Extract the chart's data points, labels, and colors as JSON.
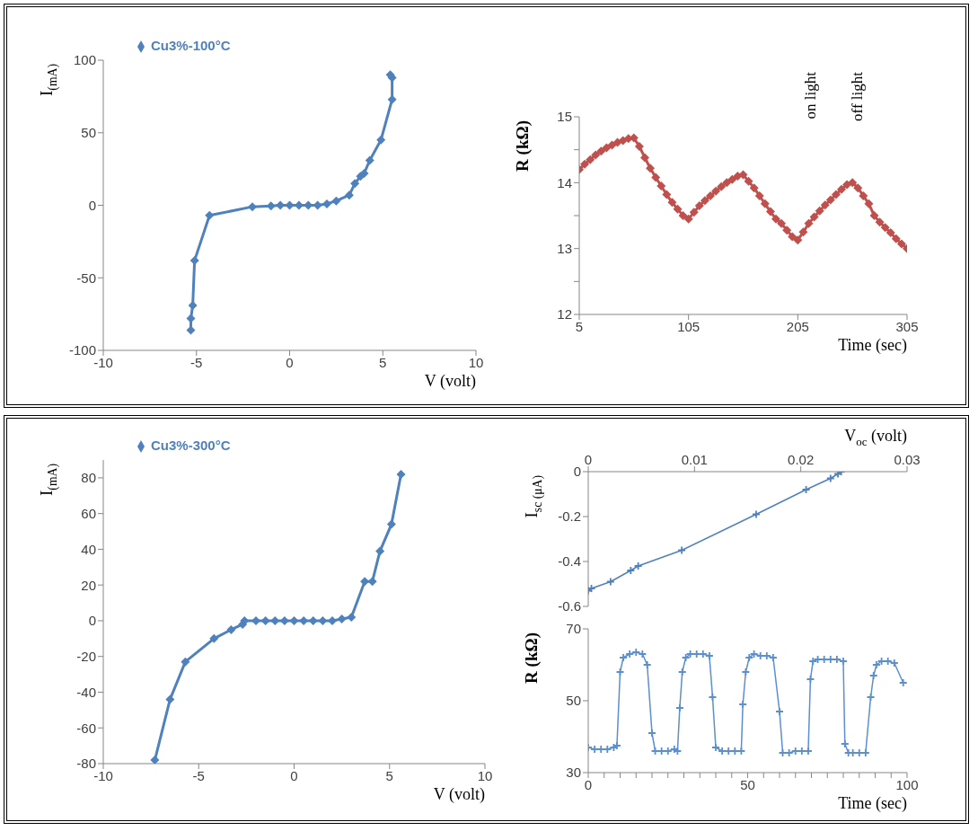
{
  "chart_data": [
    {
      "type": "line",
      "xlabel": "V (volt)",
      "ylabel": "I$_{(mA)}$",
      "legend": "top left",
      "marker": "diamond",
      "xlim": [
        -10,
        10
      ],
      "xticks": [
        -10,
        -5,
        0,
        5,
        10
      ],
      "ylim": [
        -100,
        100
      ],
      "yticks": [
        -100,
        -50,
        0,
        50,
        100
      ],
      "series": [
        {
          "name": "Cu3%-100°C",
          "color": "#4f81bd",
          "x": [
            -5.3,
            -5.3,
            -5.2,
            -5.1,
            -4.3,
            -2,
            -1,
            -0.5,
            0,
            0.5,
            1,
            1.5,
            2,
            2.5,
            3.2,
            3.5,
            3.8,
            4.0,
            4.3,
            4.9,
            5.5,
            5.5,
            5.4
          ],
          "values": [
            -86,
            -78,
            -69,
            -38,
            -7,
            -1,
            -0.5,
            0,
            0,
            0,
            0,
            0,
            1,
            3,
            7,
            15,
            20,
            22,
            31,
            45,
            73,
            88,
            90
          ]
        }
      ]
    },
    {
      "type": "line",
      "xlabel": "Time (sec)",
      "ylabel": "R (kΩ)",
      "marker": "diamond",
      "xlim": [
        5,
        305
      ],
      "xticks": [
        5,
        105,
        205,
        305
      ],
      "ylim": [
        12,
        15
      ],
      "yticks": [
        12,
        {
          "value": 12.5,
          "label": null
        },
        13,
        {
          "value": 13.5,
          "label": null
        },
        14,
        {
          "value": 14.5,
          "label": null
        },
        15
      ],
      "annotations": [
        "on light",
        "off light"
      ],
      "series": [
        {
          "color": "#c0504d",
          "x": [
            5,
            10,
            15,
            20,
            25,
            30,
            35,
            40,
            45,
            50,
            55,
            60,
            65,
            70,
            75,
            80,
            85,
            90,
            95,
            100,
            105,
            110,
            115,
            120,
            125,
            130,
            135,
            140,
            145,
            150,
            155,
            160,
            165,
            170,
            175,
            180,
            185,
            190,
            195,
            200,
            205,
            210,
            215,
            220,
            225,
            230,
            235,
            240,
            245,
            250,
            255,
            260,
            265,
            270,
            275,
            280,
            285,
            290,
            295,
            300,
            305
          ],
          "values": [
            14.2,
            14.28,
            14.35,
            14.42,
            14.48,
            14.53,
            14.57,
            14.61,
            14.64,
            14.67,
            14.68,
            14.55,
            14.38,
            14.22,
            14.08,
            13.95,
            13.82,
            13.7,
            13.6,
            13.5,
            13.45,
            13.55,
            13.65,
            13.73,
            13.8,
            13.87,
            13.94,
            14.0,
            14.05,
            14.1,
            14.12,
            14.02,
            13.92,
            13.8,
            13.68,
            13.56,
            13.45,
            13.38,
            13.28,
            13.18,
            13.13,
            13.25,
            13.38,
            13.48,
            13.57,
            13.66,
            13.74,
            13.82,
            13.9,
            13.97,
            14.0,
            13.92,
            13.8,
            13.68,
            13.5,
            13.4,
            13.32,
            13.24,
            13.15,
            13.07,
            13.0
          ]
        }
      ]
    },
    {
      "type": "line",
      "xlabel": "V (volt)",
      "ylabel": "I$_{(mA)}$",
      "legend": "top left",
      "marker": "diamond",
      "xlim": [
        -10,
        10
      ],
      "xticks": [
        -10,
        -5,
        0,
        5,
        10
      ],
      "ylim": [
        -80,
        90
      ],
      "yticks": [
        -80,
        -60,
        -40,
        -20,
        0,
        20,
        40,
        60,
        80
      ],
      "series": [
        {
          "name": "Cu3%-300°C",
          "color": "#4f81bd",
          "x": [
            -7.3,
            -6.5,
            -5.7,
            -4.2,
            -3.3,
            -2.7,
            -2.6,
            -2,
            -1.5,
            -1,
            -0.5,
            0,
            0.5,
            1,
            1.5,
            2,
            2.5,
            3,
            3.7,
            4.1,
            4.5,
            5.1,
            5.6
          ],
          "values": [
            -78,
            -44,
            -23,
            -10,
            -5,
            -2,
            0,
            0,
            0,
            0,
            0,
            0,
            0,
            0,
            0,
            0,
            1,
            2,
            22,
            22,
            39,
            54,
            82
          ]
        }
      ]
    },
    {
      "type": "line",
      "xlabel": "V$_{oc}$ (volt)",
      "ylabel": "I$_{sc (μA)}$",
      "marker": "cross",
      "xlim": [
        0,
        0.03
      ],
      "xticks": [
        0,
        0.01,
        0.02,
        0.03
      ],
      "ylim": [
        -0.6,
        0
      ],
      "yticks": [
        -0.6,
        -0.4,
        -0.2,
        0
      ],
      "series": [
        {
          "color": "#4f81bd",
          "x": [
            0,
            0.0003,
            0.0021,
            0.004,
            0.0047,
            0.0088,
            0.0158,
            0.0205,
            0.0228,
            0.0235,
            0.0238
          ],
          "values": [
            -0.53,
            -0.52,
            -0.49,
            -0.44,
            -0.42,
            -0.35,
            -0.19,
            -0.08,
            -0.03,
            -0.01,
            0
          ]
        }
      ]
    },
    {
      "type": "line",
      "xlabel": "Time (sec)",
      "ylabel": "R (kΩ)",
      "marker": "cross",
      "xlim": [
        0,
        100
      ],
      "xticks": [
        0,
        {
          "value": 5,
          "label": null
        },
        {
          "value": 10,
          "label": null
        },
        {
          "value": 15,
          "label": null
        },
        {
          "value": 20,
          "label": null
        },
        {
          "value": 25,
          "label": null
        },
        {
          "value": 30,
          "label": null
        },
        {
          "value": 35,
          "label": null
        },
        {
          "value": 40,
          "label": null
        },
        {
          "value": 45,
          "label": null
        },
        50,
        {
          "value": 55,
          "label": null
        },
        {
          "value": 60,
          "label": null
        },
        {
          "value": 65,
          "label": null
        },
        {
          "value": 70,
          "label": null
        },
        {
          "value": 75,
          "label": null
        },
        {
          "value": 80,
          "label": null
        },
        {
          "value": 85,
          "label": null
        },
        {
          "value": 90,
          "label": null
        },
        {
          "value": 95,
          "label": null
        },
        100
      ],
      "ylim": [
        30,
        70
      ],
      "yticks": [
        30,
        50,
        70
      ],
      "series": [
        {
          "color": "#5b8fd0",
          "x": [
            0,
            2,
            4,
            6,
            8,
            9,
            10,
            11,
            13,
            15,
            17,
            18.5,
            20,
            21,
            23,
            25,
            27,
            28,
            28.7,
            29.5,
            30.6,
            32,
            34,
            36,
            38,
            39,
            40,
            42,
            44,
            46,
            48,
            48.5,
            49.4,
            50.5,
            52,
            54,
            56,
            58,
            60,
            61,
            63,
            65,
            67,
            69,
            69.7,
            70.5,
            72,
            74,
            76,
            78,
            80,
            80.5,
            81.6,
            83,
            85,
            87,
            88.6,
            89.5,
            90.4,
            92,
            94,
            96,
            98.8
          ],
          "values": [
            37,
            36.5,
            36.5,
            36.5,
            37,
            37.5,
            58,
            62,
            63,
            63.5,
            63,
            60,
            41,
            36,
            36,
            36,
            36.5,
            36,
            48,
            58,
            62,
            63,
            63,
            63,
            62.5,
            51,
            37,
            36,
            36,
            36,
            36,
            49,
            58,
            62,
            63,
            62.5,
            62.5,
            62,
            47,
            35.5,
            35.5,
            36,
            36,
            36,
            56,
            61,
            61.5,
            61.5,
            61.5,
            61.5,
            61,
            38,
            35.5,
            35.5,
            35.5,
            35.5,
            51,
            57,
            60,
            61,
            61,
            60.5,
            55
          ]
        }
      ]
    }
  ]
}
